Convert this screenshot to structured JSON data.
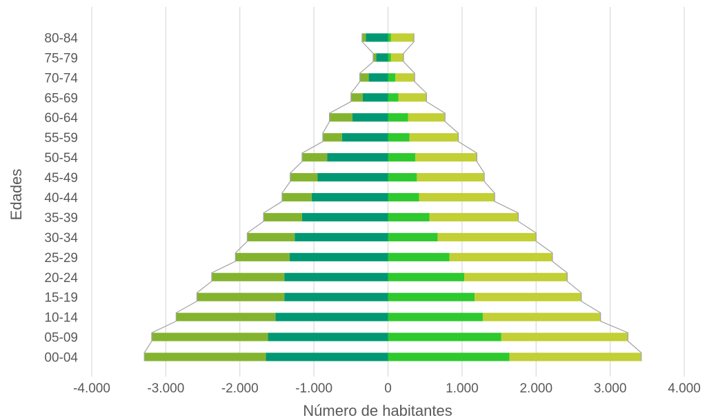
{
  "chart_data": {
    "type": "bar",
    "orientation": "horizontal",
    "stacked": true,
    "xlabel": "Número de habitantes",
    "ylabel": "Edades",
    "xlim": [
      -4000,
      4000
    ],
    "x_ticks": [
      -4000,
      -3000,
      -2000,
      -1000,
      0,
      1000,
      2000,
      3000,
      4000
    ],
    "x_tick_labels": [
      "-4.000",
      "-3.000",
      "-2.000",
      "-1.000",
      "0",
      "1.000",
      "2.000",
      "3.000",
      "4.000"
    ],
    "grid": "vertical",
    "legend": "none",
    "categories": [
      "00-04",
      "05-09",
      "10-14",
      "15-19",
      "20-24",
      "25-29",
      "30-34",
      "35-39",
      "40-44",
      "45-49",
      "50-54",
      "55-59",
      "60-64",
      "65-69",
      "70-74",
      "75-79",
      "80-84"
    ],
    "series": [
      {
        "color": "#009872",
        "values": [
          -1650,
          -1620,
          -1520,
          -1400,
          -1400,
          -1330,
          -1260,
          -1160,
          -1030,
          -950,
          -820,
          -620,
          -480,
          -340,
          -260,
          -160,
          -300
        ]
      },
      {
        "color": "#84b42f",
        "values": [
          -1640,
          -1570,
          -1340,
          -1180,
          -980,
          -730,
          -640,
          -520,
          -400,
          -370,
          -340,
          -260,
          -310,
          -160,
          -120,
          -40,
          -50
        ]
      },
      {
        "color": "#2ec92e",
        "values": [
          1640,
          1530,
          1280,
          1170,
          1030,
          830,
          670,
          560,
          420,
          390,
          370,
          290,
          270,
          140,
          100,
          40,
          40
        ]
      },
      {
        "color": "#c2cf35",
        "values": [
          1780,
          1710,
          1590,
          1440,
          1390,
          1390,
          1330,
          1200,
          1020,
          910,
          830,
          660,
          500,
          380,
          260,
          170,
          310
        ]
      }
    ]
  }
}
